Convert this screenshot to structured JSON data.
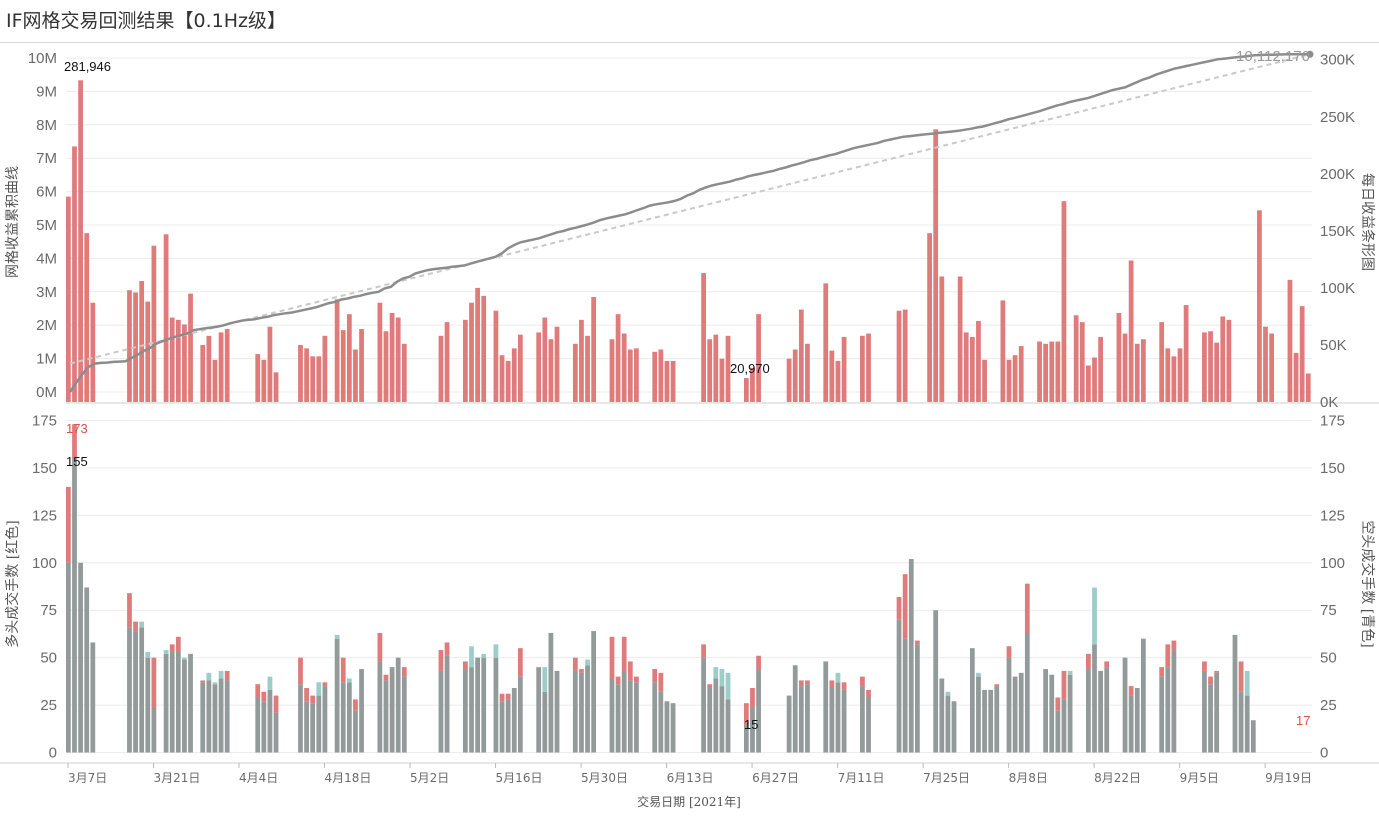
{
  "title": "IF网格交易回测结果【0.1Hz级】",
  "colors": {
    "red": "#e07b7b",
    "teal": "#9dcdc8",
    "gray": "#929a9a",
    "line": "#8c8c8c",
    "trend": "#c9c9c9",
    "grid": "#ececec"
  },
  "chart_data": [
    {
      "type": "bar+line",
      "ylabel_left": "网格收益累积曲线",
      "ylabel_right": "每日收益条形图",
      "left_ticks": [
        "0M",
        "1M",
        "2M",
        "3M",
        "4M",
        "5M",
        "6M",
        "7M",
        "8M",
        "9M",
        "10M"
      ],
      "right_ticks": [
        "0K",
        "50K",
        "100K",
        "150K",
        "200K",
        "250K",
        "300K"
      ],
      "ylim_left": [
        -300000,
        10000000
      ],
      "ylim_right": [
        0,
        305000
      ],
      "annotations": {
        "max_bar": "281,946",
        "min_bar": "20,970",
        "final_cum": "10,112,170"
      },
      "daily_profit": [
        180000,
        224000,
        281946,
        148000,
        87000,
        null,
        null,
        null,
        null,
        null,
        98000,
        96000,
        106000,
        88000,
        137000,
        null,
        147000,
        74000,
        72000,
        68000,
        95000,
        null,
        50000,
        58000,
        37000,
        61000,
        64000,
        null,
        null,
        null,
        null,
        42000,
        37000,
        66000,
        26000,
        null,
        null,
        null,
        50000,
        47000,
        40000,
        40000,
        58000,
        null,
        90000,
        63000,
        77000,
        46000,
        64000,
        null,
        null,
        87000,
        62000,
        78000,
        74000,
        51000,
        null,
        null,
        null,
        null,
        null,
        58000,
        70000,
        null,
        null,
        72000,
        87000,
        100000,
        93000,
        null,
        80000,
        41000,
        36000,
        47000,
        59000,
        null,
        null,
        61000,
        74000,
        55000,
        66000,
        null,
        null,
        51000,
        72000,
        58000,
        92000,
        null,
        null,
        55000,
        77000,
        60000,
        46000,
        47000,
        null,
        null,
        44000,
        46000,
        36000,
        36000,
        null,
        null,
        null,
        null,
        113000,
        55000,
        59000,
        38000,
        58000,
        null,
        null,
        20970,
        30000,
        77000,
        null,
        null,
        null,
        null,
        38000,
        46000,
        81000,
        51000,
        null,
        null,
        104000,
        45000,
        36000,
        57000,
        null,
        null,
        58000,
        60000,
        null,
        null,
        null,
        null,
        80000,
        81000,
        null,
        null,
        null,
        148000,
        239000,
        110000,
        null,
        null,
        110000,
        61000,
        57000,
        71000,
        37000,
        null,
        null,
        89000,
        37000,
        41000,
        49000,
        null,
        null,
        53000,
        51000,
        53000,
        53000,
        176000,
        null,
        76000,
        70000,
        32000,
        39000,
        57000,
        null,
        null,
        78000,
        60000,
        124000,
        51000,
        55000,
        null,
        null,
        70000,
        47000,
        40000,
        47000,
        85000,
        null,
        null,
        61000,
        62000,
        52000,
        75000,
        72000,
        null,
        null,
        null,
        null,
        168000,
        66000,
        60000,
        null,
        null,
        107000,
        43000,
        84000,
        25000
      ],
      "cumulative_millions": [
        0,
        0.28,
        0.53,
        0.75,
        0.85,
        0.87,
        0.88,
        0.9,
        0.91,
        0.92,
        1.02,
        1.12,
        1.23,
        1.32,
        1.45,
        1.52,
        1.59,
        1.65,
        1.7,
        1.75,
        1.85,
        1.88,
        1.91,
        1.93,
        1.96,
        2.0,
        2.06,
        2.1,
        2.14,
        2.16,
        2.18,
        2.22,
        2.25,
        2.3,
        2.33,
        2.36,
        2.38,
        2.42,
        2.46,
        2.5,
        2.54,
        2.6,
        2.66,
        2.7,
        2.77,
        2.8,
        2.85,
        2.88,
        2.93,
        2.97,
        3.0,
        3.1,
        3.15,
        3.3,
        3.4,
        3.45,
        3.55,
        3.6,
        3.65,
        3.68,
        3.7,
        3.72,
        3.75,
        3.77,
        3.79,
        3.85,
        3.9,
        3.95,
        4.0,
        4.05,
        4.15,
        4.3,
        4.4,
        4.48,
        4.52,
        4.56,
        4.6,
        4.66,
        4.72,
        4.78,
        4.82,
        4.88,
        4.92,
        4.97,
        5.02,
        5.08,
        5.15,
        5.2,
        5.24,
        5.28,
        5.32,
        5.38,
        5.45,
        5.51,
        5.58,
        5.62,
        5.65,
        5.68,
        5.72,
        5.78,
        5.88,
        5.95,
        6.05,
        6.12,
        6.18,
        6.22,
        6.26,
        6.3,
        6.36,
        6.4,
        6.46,
        6.5,
        6.54,
        6.58,
        6.62,
        6.68,
        6.72,
        6.78,
        6.83,
        6.88,
        6.94,
        6.98,
        7.03,
        7.08,
        7.12,
        7.18,
        7.24,
        7.3,
        7.34,
        7.38,
        7.42,
        7.46,
        7.52,
        7.56,
        7.6,
        7.64,
        7.66,
        7.68,
        7.7,
        7.72,
        7.74,
        7.76,
        7.78,
        7.8,
        7.82,
        7.85,
        7.88,
        7.92,
        7.95,
        8.0,
        8.05,
        8.1,
        8.16,
        8.2,
        8.25,
        8.3,
        8.35,
        8.4,
        8.46,
        8.52,
        8.58,
        8.62,
        8.68,
        8.72,
        8.76,
        8.8,
        8.86,
        8.92,
        8.98,
        9.04,
        9.08,
        9.12,
        9.2,
        9.28,
        9.36,
        9.42,
        9.5,
        9.56,
        9.62,
        9.68,
        9.72,
        9.76,
        9.8,
        9.84,
        9.88,
        9.92,
        9.96,
        9.98,
        10.0,
        10.02,
        10.04,
        10.06,
        10.08,
        10.09,
        10.1,
        10.1,
        10.105,
        10.108,
        10.11,
        10.112,
        10.112,
        10.11217
      ],
      "x_tick_labels": [
        "3月7日",
        "3月21日",
        "4月4日",
        "4月18日",
        "5月2日",
        "5月16日",
        "5月30日",
        "6月13日",
        "6月27日",
        "7月11日",
        "7月25日",
        "8月8日",
        "8月22日",
        "9月5日",
        "9月19日"
      ],
      "xlabel": "交易日期 [2021年]"
    },
    {
      "type": "stacked-bar",
      "ylabel_left": "多头成交手数 [红色]",
      "ylabel_right": "空头成交手数 [青色]",
      "ticks": [
        "0",
        "25",
        "50",
        "75",
        "100",
        "125",
        "150",
        "175"
      ],
      "ylim": [
        -5,
        180
      ],
      "annotations": {
        "max_long": "173",
        "max_short": "155",
        "min_long": "17",
        "min_short": "15"
      },
      "long_lots": [
        140,
        173,
        100,
        87,
        58,
        null,
        null,
        null,
        null,
        null,
        84,
        69,
        66,
        50,
        50,
        null,
        52,
        57,
        61,
        49,
        52,
        null,
        38,
        38,
        36,
        39,
        43,
        null,
        null,
        null,
        null,
        36,
        32,
        33,
        30,
        null,
        null,
        null,
        50,
        34,
        30,
        30,
        37,
        null,
        60,
        50,
        37,
        28,
        44,
        null,
        null,
        63,
        41,
        45,
        50,
        45,
        null,
        null,
        null,
        null,
        null,
        54,
        58,
        null,
        null,
        48,
        45,
        50,
        50,
        null,
        50,
        31,
        31,
        34,
        55,
        null,
        null,
        45,
        32,
        63,
        43,
        null,
        null,
        50,
        44,
        46,
        64,
        null,
        null,
        61,
        40,
        61,
        48,
        40,
        null,
        null,
        44,
        42,
        27,
        26,
        null,
        null,
        null,
        null,
        57,
        36,
        39,
        35,
        28,
        null,
        null,
        26,
        34,
        51,
        null,
        null,
        null,
        null,
        30,
        46,
        38,
        38,
        null,
        null,
        48,
        38,
        37,
        37,
        null,
        null,
        40,
        33,
        null,
        null,
        null,
        null,
        82,
        94,
        102,
        59,
        null,
        null,
        75,
        39,
        30,
        27,
        null,
        null,
        55,
        40,
        33,
        33,
        36,
        null,
        56,
        40,
        42,
        89,
        null,
        null,
        44,
        41,
        29,
        43,
        41,
        null,
        null,
        52,
        57,
        43,
        48,
        null,
        null,
        50,
        35,
        34,
        60,
        null,
        null,
        45,
        57,
        59,
        null,
        null,
        null,
        null,
        48,
        40,
        43,
        null,
        null,
        62,
        48,
        30,
        17
      ],
      "short_lots": [
        100,
        155,
        100,
        87,
        58,
        null,
        null,
        null,
        null,
        null,
        66,
        64,
        69,
        53,
        24,
        null,
        54,
        53,
        53,
        50,
        52,
        null,
        37,
        42,
        37,
        43,
        38,
        null,
        null,
        null,
        null,
        29,
        27,
        40,
        21,
        null,
        null,
        null,
        36,
        27,
        26,
        37,
        35,
        null,
        62,
        37,
        39,
        22,
        44,
        null,
        null,
        48,
        38,
        45,
        50,
        40,
        null,
        null,
        null,
        null,
        null,
        43,
        51,
        null,
        null,
        44,
        56,
        50,
        52,
        null,
        57,
        27,
        28,
        34,
        40,
        null,
        null,
        45,
        45,
        63,
        43,
        null,
        null,
        43,
        42,
        49,
        64,
        null,
        null,
        39,
        36,
        43,
        38,
        37,
        null,
        null,
        37,
        32,
        27,
        26,
        null,
        null,
        null,
        null,
        50,
        34,
        45,
        44,
        42,
        null,
        null,
        15,
        24,
        44,
        null,
        null,
        null,
        null,
        30,
        46,
        35,
        36,
        null,
        null,
        48,
        34,
        42,
        33,
        null,
        null,
        35,
        29,
        null,
        null,
        null,
        null,
        70,
        60,
        102,
        57,
        null,
        null,
        75,
        39,
        32,
        27,
        null,
        null,
        55,
        42,
        33,
        33,
        35,
        null,
        50,
        40,
        42,
        63,
        null,
        null,
        44,
        41,
        22,
        28,
        43,
        null,
        null,
        44,
        87,
        43,
        45,
        null,
        null,
        50,
        30,
        34,
        60,
        null,
        null,
        40,
        45,
        54,
        null,
        null,
        null,
        null,
        43,
        36,
        42,
        null,
        null,
        62,
        32,
        43,
        17
      ]
    }
  ]
}
